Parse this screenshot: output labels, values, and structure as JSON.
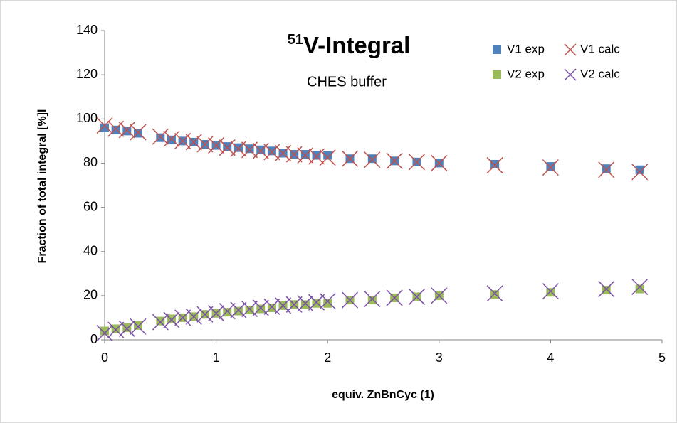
{
  "chart_data": {
    "type": "scatter",
    "title_sup": "51",
    "title": "V-Integral",
    "subtitle": "CHES buffer",
    "x_label": "equiv. ZnBnCyc (1)",
    "y_label": "Fraction of total integral [%]l",
    "x": [
      0,
      0.1,
      0.2,
      0.3,
      0.5,
      0.6,
      0.7,
      0.8,
      0.9,
      1.0,
      1.1,
      1.2,
      1.3,
      1.4,
      1.5,
      1.6,
      1.7,
      1.8,
      1.9,
      2.0,
      2.2,
      2.4,
      2.6,
      2.8,
      3.0,
      3.5,
      4.0,
      4.5,
      4.8
    ],
    "series": [
      {
        "name": "V1 exp",
        "color": "#4f81bd",
        "marker": "square",
        "values": [
          96,
          95,
          94.5,
          93.5,
          91.5,
          90.5,
          90,
          89.5,
          88.5,
          88,
          87.5,
          87,
          86.5,
          86,
          85.5,
          84.5,
          84,
          84,
          83.5,
          83.5,
          82,
          82,
          81,
          80.5,
          80,
          79.5,
          78.5,
          77.5,
          77
        ]
      },
      {
        "name": "V1 calc",
        "color": "#c0504d",
        "marker": "x",
        "values": [
          97,
          95.5,
          95,
          94,
          92,
          91,
          90,
          89.5,
          88.5,
          88,
          87,
          86.5,
          86,
          85.5,
          85,
          84.5,
          84,
          83.5,
          83,
          82.5,
          82,
          81.5,
          81,
          80.5,
          80,
          79,
          78,
          77,
          76
        ]
      },
      {
        "name": "V2 exp",
        "color": "#9bbb59",
        "marker": "square",
        "values": [
          4,
          5,
          5.5,
          6.5,
          8.5,
          9.5,
          10,
          10.5,
          11.5,
          12,
          12.5,
          13,
          13.5,
          14,
          14.5,
          15.5,
          16,
          16,
          16.5,
          16.5,
          18,
          18,
          19,
          19.5,
          20,
          20.5,
          21.5,
          22.5,
          23
        ]
      },
      {
        "name": "V2 calc",
        "color": "#7b4fa8",
        "marker": "x",
        "values": [
          3,
          4.5,
          5,
          6,
          8,
          9,
          10,
          10.5,
          11.5,
          12,
          13,
          13.5,
          14,
          14.5,
          15,
          15.5,
          16,
          16.5,
          17,
          17.5,
          18,
          18.5,
          19,
          19.5,
          20,
          21,
          22,
          23,
          24
        ]
      }
    ],
    "xlim": [
      0,
      5
    ],
    "xticks": [
      0,
      1,
      2,
      3,
      4,
      5
    ],
    "ylim": [
      0,
      140
    ],
    "yticks": [
      0,
      20,
      40,
      60,
      80,
      100,
      120,
      140
    ],
    "grid": false,
    "legend": "top-right"
  }
}
